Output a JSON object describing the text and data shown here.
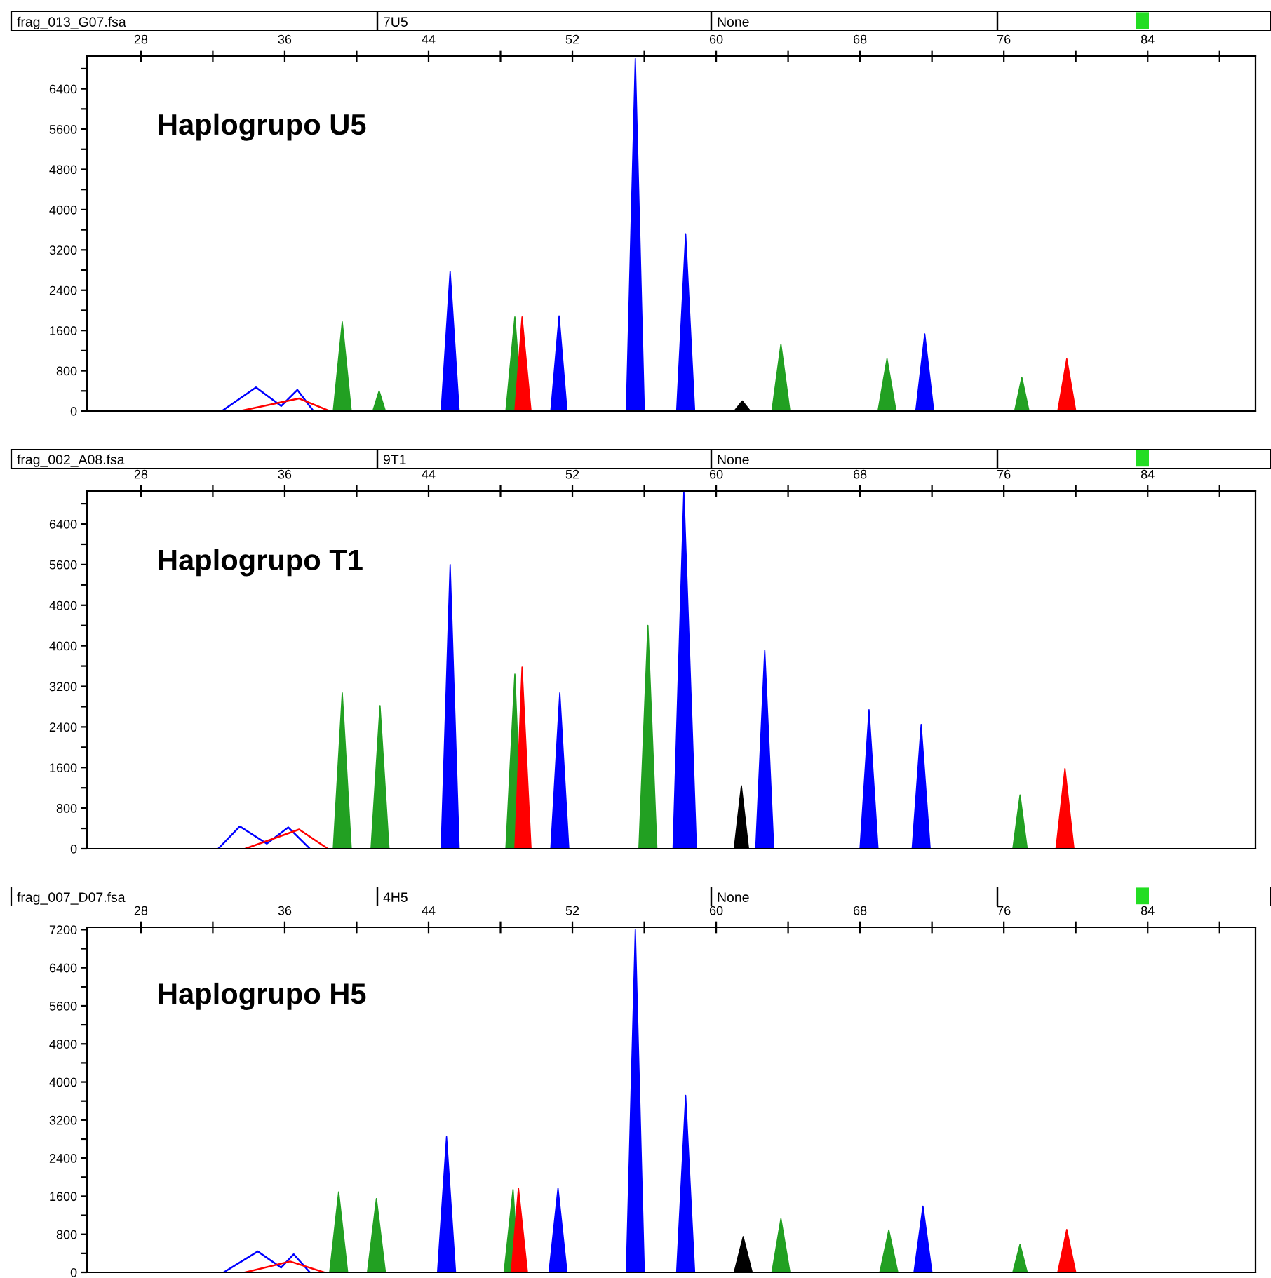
{
  "chart_data": [
    {
      "type": "area",
      "title": "Haplogrupo U5",
      "annotations": [
        "frag_013_G07.fsa",
        "7U5",
        "None"
      ],
      "xlim": [
        25,
        90
      ],
      "xticks": [
        28,
        {
          "value": 32,
          "label": null
        },
        36,
        {
          "value": 40,
          "label": null
        },
        44,
        {
          "value": 48,
          "label": null
        },
        52,
        {
          "value": 56,
          "label": null
        },
        60,
        {
          "value": 64,
          "label": null
        },
        68,
        {
          "value": 72,
          "label": null
        },
        76,
        {
          "value": 80,
          "label": null
        },
        84,
        {
          "value": 88,
          "label": null
        }
      ],
      "ylim": [
        0,
        7050
      ],
      "yticks": [
        0,
        {
          "value": 400,
          "label": null
        },
        800,
        {
          "value": 1200,
          "label": null
        },
        1600,
        {
          "value": 2000,
          "label": null
        },
        2400,
        {
          "value": 2800,
          "label": null
        },
        3200,
        {
          "value": 3600,
          "label": null
        },
        4000,
        {
          "value": 4400,
          "label": null
        },
        4800,
        {
          "value": 5200,
          "label": null
        },
        5600,
        {
          "value": 6000,
          "label": null
        },
        6400,
        {
          "value": 6800,
          "label": null
        }
      ],
      "series": [
        {
          "type": "line",
          "color": "#0000ff",
          "x": [
            32.5,
            34.4,
            35.8,
            36.7,
            37.6
          ],
          "values": [
            0,
            470,
            100,
            420,
            0
          ]
        },
        {
          "type": "line",
          "color": "#ff0000",
          "x": [
            33.5,
            36.8,
            38.5
          ],
          "values": [
            0,
            250,
            0
          ]
        },
        {
          "color": "#0000ff",
          "x": [
            44.7,
            45.2,
            45.7,
            50.8,
            51.26,
            51.7,
            55.0,
            55.5,
            56.0,
            57.8,
            58.3,
            58.8,
            71.1,
            71.6,
            72.1
          ],
          "values": [
            0,
            2780,
            0,
            0,
            1890,
            0,
            0,
            7000,
            0,
            0,
            3520,
            0,
            0,
            1530,
            0
          ]
        },
        {
          "color": "#22a022",
          "x": [
            38.7,
            39.2,
            39.7,
            40.9,
            41.25,
            41.6,
            48.3,
            48.8,
            49.2,
            63.1,
            63.6,
            64.1,
            69.0,
            69.5,
            70.0,
            76.6,
            77.0,
            77.4
          ],
          "values": [
            0,
            1770,
            0,
            0,
            400,
            0,
            0,
            1870,
            0,
            0,
            1330,
            0,
            0,
            1040,
            0,
            0,
            670,
            0
          ]
        },
        {
          "color": "#ff0000",
          "x": [
            48.8,
            49.2,
            49.7,
            79.0,
            79.5,
            80.0
          ],
          "values": [
            0,
            1870,
            0,
            0,
            1040,
            0
          ]
        },
        {
          "color": "#000000",
          "x": [
            61.0,
            61.45,
            61.9
          ],
          "values": [
            0,
            200,
            0
          ]
        }
      ]
    },
    {
      "type": "area",
      "title": "Haplogrupo T1",
      "annotations": [
        "frag_002_A08.fsa",
        "9T1",
        "None"
      ],
      "xlim": [
        25,
        90
      ],
      "xticks": [
        28,
        {
          "value": 32,
          "label": null
        },
        36,
        {
          "value": 40,
          "label": null
        },
        44,
        {
          "value": 48,
          "label": null
        },
        52,
        {
          "value": 56,
          "label": null
        },
        60,
        {
          "value": 64,
          "label": null
        },
        68,
        {
          "value": 72,
          "label": null
        },
        76,
        {
          "value": 80,
          "label": null
        },
        84,
        {
          "value": 88,
          "label": null
        }
      ],
      "ylim": [
        0,
        7050
      ],
      "yticks": [
        0,
        {
          "value": 400,
          "label": null
        },
        800,
        {
          "value": 1200,
          "label": null
        },
        1600,
        {
          "value": 2000,
          "label": null
        },
        2400,
        {
          "value": 2800,
          "label": null
        },
        3200,
        {
          "value": 3600,
          "label": null
        },
        4000,
        {
          "value": 4400,
          "label": null
        },
        4800,
        {
          "value": 5200,
          "label": null
        },
        5600,
        {
          "value": 6000,
          "label": null
        },
        6400,
        {
          "value": 6800,
          "label": null
        }
      ],
      "series": [
        {
          "type": "line",
          "color": "#0000ff",
          "x": [
            32.3,
            33.5,
            35.0,
            36.2,
            37.4
          ],
          "values": [
            0,
            440,
            100,
            420,
            0
          ]
        },
        {
          "type": "line",
          "color": "#ff0000",
          "x": [
            33.8,
            36.8,
            38.4
          ],
          "values": [
            0,
            380,
            0
          ]
        },
        {
          "color": "#0000ff",
          "x": [
            44.7,
            45.2,
            45.7,
            50.8,
            51.3,
            51.8,
            57.6,
            58.2,
            58.9,
            62.2,
            62.7,
            63.2,
            68.0,
            68.5,
            69.0,
            70.9,
            71.4,
            71.9
          ],
          "values": [
            0,
            5600,
            0,
            0,
            3070,
            0,
            0,
            7050,
            0,
            0,
            3910,
            0,
            0,
            2740,
            0,
            0,
            2450,
            0
          ]
        },
        {
          "color": "#22a022",
          "x": [
            38.7,
            39.2,
            39.7,
            40.8,
            41.3,
            41.8,
            48.3,
            48.8,
            49.2,
            55.7,
            56.2,
            56.7,
            76.5,
            76.9,
            77.3
          ],
          "values": [
            0,
            3070,
            0,
            0,
            2820,
            0,
            0,
            3440,
            0,
            0,
            4400,
            0,
            0,
            1060,
            0
          ]
        },
        {
          "color": "#ff0000",
          "x": [
            48.8,
            49.2,
            49.7,
            78.9,
            79.4,
            79.9
          ],
          "values": [
            0,
            3580,
            0,
            0,
            1580,
            0
          ]
        },
        {
          "color": "#000000",
          "x": [
            61.0,
            61.4,
            61.8
          ],
          "values": [
            0,
            1240,
            0
          ]
        }
      ]
    },
    {
      "type": "area",
      "title": "Haplogrupo H5",
      "annotations": [
        "frag_007_D07.fsa",
        "4H5",
        "None"
      ],
      "xlim": [
        25,
        90
      ],
      "xticks": [
        28,
        {
          "value": 32,
          "label": null
        },
        36,
        {
          "value": 40,
          "label": null
        },
        44,
        {
          "value": 48,
          "label": null
        },
        52,
        {
          "value": 56,
          "label": null
        },
        60,
        {
          "value": 64,
          "label": null
        },
        68,
        {
          "value": 72,
          "label": null
        },
        76,
        {
          "value": 80,
          "label": null
        },
        84,
        {
          "value": 88,
          "label": null
        }
      ],
      "ylim": [
        0,
        7250
      ],
      "yticks": [
        0,
        {
          "value": 400,
          "label": null
        },
        800,
        {
          "value": 1200,
          "label": null
        },
        1600,
        {
          "value": 2000,
          "label": null
        },
        2400,
        {
          "value": 2800,
          "label": null
        },
        3200,
        {
          "value": 3600,
          "label": null
        },
        4000,
        {
          "value": 4400,
          "label": null
        },
        4800,
        {
          "value": 5200,
          "label": null
        },
        5600,
        {
          "value": 6000,
          "label": null
        },
        6400,
        {
          "value": 6800,
          "label": null
        },
        7200
      ],
      "series": [
        {
          "type": "line",
          "color": "#0000ff",
          "x": [
            32.6,
            34.5,
            35.8,
            36.5,
            37.4
          ],
          "values": [
            0,
            440,
            100,
            380,
            0
          ]
        },
        {
          "type": "line",
          "color": "#ff0000",
          "x": [
            33.8,
            36.3,
            38.2
          ],
          "values": [
            0,
            230,
            0
          ]
        },
        {
          "color": "#0000ff",
          "x": [
            44.5,
            45.0,
            45.5,
            50.7,
            51.2,
            51.7,
            55.0,
            55.5,
            56.0,
            57.8,
            58.3,
            58.8,
            71.0,
            71.5,
            72.0
          ],
          "values": [
            0,
            2850,
            0,
            0,
            1770,
            0,
            0,
            7200,
            0,
            0,
            3720,
            0,
            0,
            1390,
            0
          ]
        },
        {
          "color": "#22a022",
          "x": [
            38.5,
            39.0,
            39.5,
            40.6,
            41.1,
            41.6,
            48.2,
            48.7,
            49.0,
            63.1,
            63.6,
            64.1,
            69.1,
            69.6,
            70.1,
            76.5,
            76.9,
            77.3
          ],
          "values": [
            0,
            1690,
            0,
            0,
            1550,
            0,
            0,
            1740,
            0,
            0,
            1130,
            0,
            0,
            890,
            0,
            0,
            590,
            0
          ]
        },
        {
          "color": "#ff0000",
          "x": [
            48.6,
            49.0,
            49.5,
            79.0,
            79.5,
            80.0
          ],
          "values": [
            0,
            1770,
            0,
            0,
            900,
            0
          ]
        },
        {
          "color": "#000000",
          "x": [
            61.0,
            61.5,
            62.0
          ],
          "values": [
            0,
            750,
            0
          ]
        }
      ]
    }
  ]
}
